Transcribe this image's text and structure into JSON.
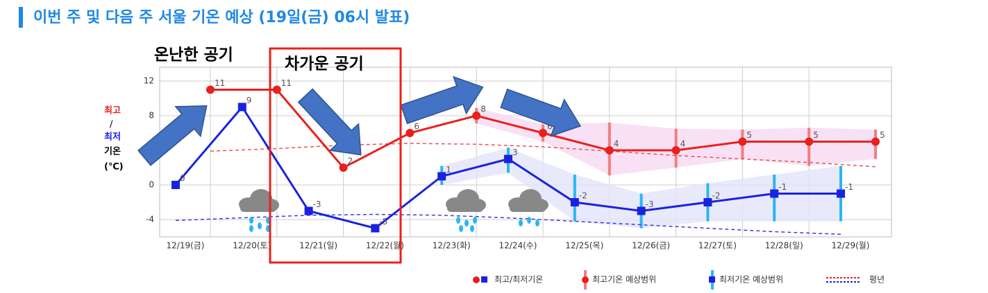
{
  "chart_data": {
    "type": "line",
    "title": "이번 주 및 다음 주 서울 기온 예상 (19일(금) 06시 발표)",
    "annotations": [
      "온난한 공기",
      "차가운 공기"
    ],
    "y_label": [
      "최고",
      "/",
      "최저",
      "기온",
      "(℃)"
    ],
    "categories": [
      "12/19(금)",
      "12/20(토)",
      "12/21(일)",
      "12/22(월)",
      "12/23(화)",
      "12/24(수)",
      "12/25(목)",
      "12/26(금)",
      "12/27(토)",
      "12/28(일)",
      "12/29(월)"
    ],
    "series": [
      {
        "color": "#e8211d",
        "marker": "circle",
        "values": [
          11,
          11,
          2,
          6,
          8,
          6,
          4,
          4,
          5,
          5,
          5
        ],
        "range": {
          "color": "#f07f7f",
          "band": "#f7d9f2",
          "low": [
            null,
            null,
            null,
            null,
            7.1,
            5,
            1.1,
            2,
            3,
            2.2,
            3
          ],
          "high": [
            null,
            null,
            null,
            null,
            8.9,
            7,
            7.2,
            6.5,
            6.4,
            6.6,
            6.4
          ]
        }
      },
      {
        "color": "#1a22e0",
        "marker": "square",
        "values": [
          0,
          9,
          -3,
          -5,
          1,
          3,
          -2,
          -3,
          -2,
          -1,
          -1
        ],
        "range": {
          "color": "#29b6f6",
          "band": "#e3e3fb",
          "low": [
            null,
            null,
            null,
            null,
            0,
            1.4,
            -4.2,
            -5,
            -4.2,
            -4.2,
            -4.2
          ],
          "high": [
            null,
            null,
            null,
            null,
            2.2,
            4.3,
            1.2,
            -1,
            0.2,
            1.2,
            2.2
          ]
        }
      },
      {
        "color": "#f05050",
        "dashed": true,
        "values": [
          3.9,
          4.2,
          4.6,
          4.8,
          4.7,
          4.4,
          3.9,
          3.4,
          3,
          2.6,
          2.1
        ]
      },
      {
        "color": "#3a3ae0",
        "dashed": true,
        "values": [
          -4.1,
          -3.8,
          -3.5,
          -3.4,
          -3.5,
          -3.8,
          -4.2,
          -4.6,
          -5,
          -5.4,
          -5.7
        ]
      }
    ],
    "legend": [
      "최고/최저기온",
      "최고기온 예상범위",
      "최저기온 예상범위",
      "평년"
    ],
    "ylim": [
      -6,
      13.6
    ],
    "yticks": [
      12,
      8,
      0,
      -4
    ],
    "grid": true
  }
}
